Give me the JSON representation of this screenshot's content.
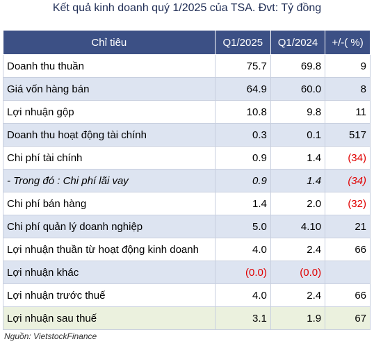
{
  "title": "Kết quả kinh doanh quý 1/2025 của TSA. Đvt: Tỷ đồng",
  "table": {
    "header": [
      "Chỉ tiêu",
      "Q1/2025",
      "Q1/2024",
      "+/-( %)"
    ],
    "rows": [
      [
        "Doanh thu thuần",
        "75.7",
        "69.8",
        "9"
      ],
      [
        "Giá vốn hàng bán",
        "64.9",
        "60.0",
        "8"
      ],
      [
        "Lợi nhuận gộp",
        "10.8",
        "9.8",
        "11"
      ],
      [
        "Doanh thu hoạt động tài chính",
        "0.3",
        "0.1",
        "517"
      ],
      [
        "Chi phí tài chính",
        "0.9",
        "1.4",
        "(34)"
      ],
      [
        "- Trong đó : Chi phí lãi vay",
        "0.9",
        "1.4",
        "(34)"
      ],
      [
        "Chi phí bán hàng",
        "1.4",
        "2.0",
        "(32)"
      ],
      [
        "Chi phí quản lý doanh nghiệp",
        "5.0",
        "4.10",
        "21"
      ],
      [
        "Lợi nhuận thuần từ hoạt động kinh doanh",
        "4.0",
        "2.4",
        "66"
      ],
      [
        "Lợi nhuận khác",
        "(0.0)",
        "(0.0)",
        ""
      ],
      [
        "Lợi nhuận trước thuế",
        "4.0",
        "2.4",
        "66"
      ],
      [
        "Lợi nhuận sau thuế",
        "3.1",
        "1.9",
        "67"
      ]
    ]
  },
  "source": "Nguồn: VietstockFinance"
}
